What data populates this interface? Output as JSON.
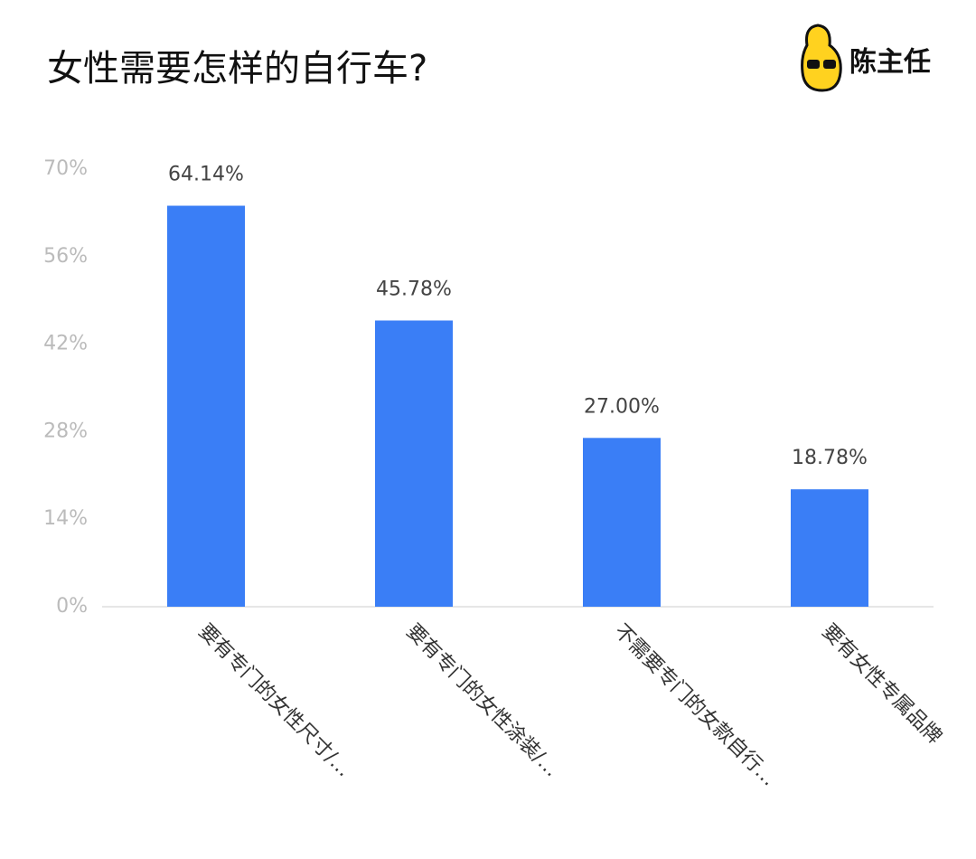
{
  "chart_data": {
    "type": "bar",
    "title": "女性需要怎样的自行车?",
    "logo": "陈主任",
    "categories": [
      "要有专门的女性尺寸/…",
      "要有专门的女性涂装/…",
      "不需要专门的女款自行…",
      "要有女性专属品牌"
    ],
    "values": [
      64.14,
      45.78,
      27.0,
      18.78
    ],
    "value_labels": [
      "64.14%",
      "45.78%",
      "27.00%",
      "18.78%"
    ],
    "color": "#3a7ef6",
    "ylim": [
      0,
      70
    ],
    "yticks": [
      {
        "value": 0,
        "label": "0%"
      },
      {
        "value": 14,
        "label": "14%"
      },
      {
        "value": 28,
        "label": "28%"
      },
      {
        "value": 42,
        "label": "42%"
      },
      {
        "value": 56,
        "label": "56%"
      },
      {
        "value": 70,
        "label": "70%"
      }
    ],
    "grid": false
  }
}
